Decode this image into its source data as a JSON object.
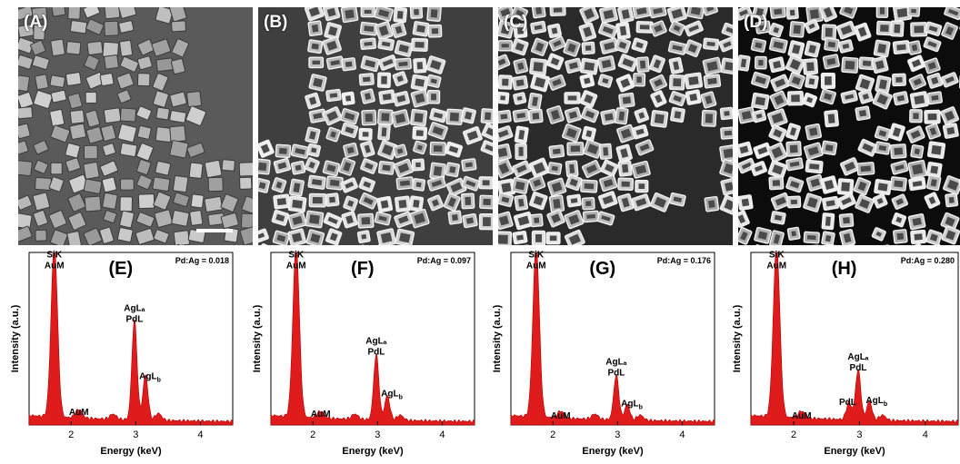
{
  "image_panels": [
    {
      "label": "(A)",
      "scale_bar": true
    },
    {
      "label": "(B)",
      "scale_bar": false
    },
    {
      "label": "(C)",
      "scale_bar": false
    },
    {
      "label": "(D)",
      "scale_bar": false
    }
  ],
  "colors": {
    "spectrum_fill": "#e01b1b",
    "axis": "#000000",
    "sem_background": "#555555"
  },
  "chart_data": [
    {
      "type": "area",
      "letter": "(E)",
      "ratio_text": "Pd:Ag = 0.018",
      "xlabel": "Energy (keV)",
      "ylabel": "Intensity (a.u.)",
      "xlim": [
        1.35,
        4.5
      ],
      "x_ticks": [
        "2",
        "3",
        "4"
      ],
      "ylim": [
        0,
        100
      ],
      "peaks": [
        {
          "name": "SiK / AuM",
          "x": 1.74,
          "height": 100,
          "width": 0.05
        },
        {
          "name": "AuM",
          "x": 2.12,
          "height": 5,
          "width": 0.05
        },
        {
          "name": "AgLa / PdL",
          "x": 2.98,
          "height": 58,
          "width": 0.04
        },
        {
          "name": "AgLb",
          "x": 3.15,
          "height": 26,
          "width": 0.04
        },
        {
          "name": "minor",
          "x": 2.65,
          "height": 3,
          "width": 0.05
        },
        {
          "name": "minor",
          "x": 3.35,
          "height": 4,
          "width": 0.05
        }
      ],
      "peak_labels": [
        {
          "lines": [
            "SiK",
            "AuM"
          ],
          "x": 1.74,
          "y": 97
        },
        {
          "lines": [
            "AuM"
          ],
          "x": 2.12,
          "y": 12
        },
        {
          "lines": [
            "AgLₐ",
            "PdL"
          ],
          "x": 2.98,
          "y": 66
        },
        {
          "lines": [
            "AgL_b"
          ],
          "x": 3.22,
          "y": 33
        }
      ]
    },
    {
      "type": "area",
      "letter": "(F)",
      "ratio_text": "Pd:Ag = 0.097",
      "xlabel": "Energy (keV)",
      "ylabel": "Intensity (a.u.)",
      "xlim": [
        1.35,
        4.5
      ],
      "x_ticks": [
        "2",
        "3",
        "4"
      ],
      "ylim": [
        0,
        100
      ],
      "peaks": [
        {
          "name": "SiK / AuM",
          "x": 1.74,
          "height": 100,
          "width": 0.05
        },
        {
          "name": "AuM",
          "x": 2.12,
          "height": 4,
          "width": 0.05
        },
        {
          "name": "AgLa / PdL",
          "x": 2.98,
          "height": 38,
          "width": 0.04
        },
        {
          "name": "AgLb",
          "x": 3.15,
          "height": 14,
          "width": 0.04
        },
        {
          "name": "minor",
          "x": 2.65,
          "height": 3,
          "width": 0.05
        },
        {
          "name": "minor",
          "x": 3.35,
          "height": 3,
          "width": 0.05
        }
      ],
      "peak_labels": [
        {
          "lines": [
            "SiK",
            "AuM"
          ],
          "x": 1.74,
          "y": 97
        },
        {
          "lines": [
            "AuM"
          ],
          "x": 2.12,
          "y": 11
        },
        {
          "lines": [
            "AgLₐ",
            "PdL"
          ],
          "x": 2.98,
          "y": 47
        },
        {
          "lines": [
            "AgL_b"
          ],
          "x": 3.22,
          "y": 23
        }
      ]
    },
    {
      "type": "area",
      "letter": "(G)",
      "ratio_text": "Pd:Ag = 0.176",
      "xlabel": "Energy (keV)",
      "ylabel": "Intensity (a.u.)",
      "xlim": [
        1.35,
        4.5
      ],
      "x_ticks": [
        "2",
        "3",
        "4"
      ],
      "ylim": [
        0,
        100
      ],
      "peaks": [
        {
          "name": "SiK / AuM",
          "x": 1.74,
          "height": 100,
          "width": 0.05
        },
        {
          "name": "AuM",
          "x": 2.12,
          "height": 4,
          "width": 0.05
        },
        {
          "name": "AgLa / PdL",
          "x": 2.98,
          "height": 26,
          "width": 0.04
        },
        {
          "name": "AgLb",
          "x": 3.15,
          "height": 9,
          "width": 0.04
        },
        {
          "name": "minor",
          "x": 2.65,
          "height": 3,
          "width": 0.05
        },
        {
          "name": "minor",
          "x": 3.35,
          "height": 3,
          "width": 0.05
        }
      ],
      "peak_labels": [
        {
          "lines": [
            "SiK",
            "AuM"
          ],
          "x": 1.74,
          "y": 97
        },
        {
          "lines": [
            "AuM"
          ],
          "x": 2.12,
          "y": 10
        },
        {
          "lines": [
            "AgLₐ",
            "PdL"
          ],
          "x": 2.98,
          "y": 35
        },
        {
          "lines": [
            "AgL_b"
          ],
          "x": 3.22,
          "y": 17
        }
      ]
    },
    {
      "type": "area",
      "letter": "(H)",
      "ratio_text": "Pd:Ag = 0.280",
      "xlabel": "Energy (keV)",
      "ylabel": "Intensity (a.u.)",
      "xlim": [
        1.35,
        4.5
      ],
      "x_ticks": [
        "2",
        "3",
        "4"
      ],
      "ylim": [
        0,
        100
      ],
      "peaks": [
        {
          "name": "SiK / AuM",
          "x": 1.74,
          "height": 100,
          "width": 0.05
        },
        {
          "name": "AuM",
          "x": 2.12,
          "height": 4,
          "width": 0.05
        },
        {
          "name": "PdL",
          "x": 2.84,
          "height": 10,
          "width": 0.04
        },
        {
          "name": "AgLa / PdL",
          "x": 2.98,
          "height": 29,
          "width": 0.04
        },
        {
          "name": "AgLb",
          "x": 3.15,
          "height": 11,
          "width": 0.04
        },
        {
          "name": "minor",
          "x": 3.35,
          "height": 3,
          "width": 0.05
        }
      ],
      "peak_labels": [
        {
          "lines": [
            "SiK",
            "AuM"
          ],
          "x": 1.74,
          "y": 97
        },
        {
          "lines": [
            "AuM"
          ],
          "x": 2.12,
          "y": 10
        },
        {
          "lines": [
            "PdL"
          ],
          "x": 2.82,
          "y": 18
        },
        {
          "lines": [
            "AgLₐ",
            "PdL"
          ],
          "x": 2.98,
          "y": 38
        },
        {
          "lines": [
            "AgL_b"
          ],
          "x": 3.26,
          "y": 19
        }
      ]
    }
  ]
}
